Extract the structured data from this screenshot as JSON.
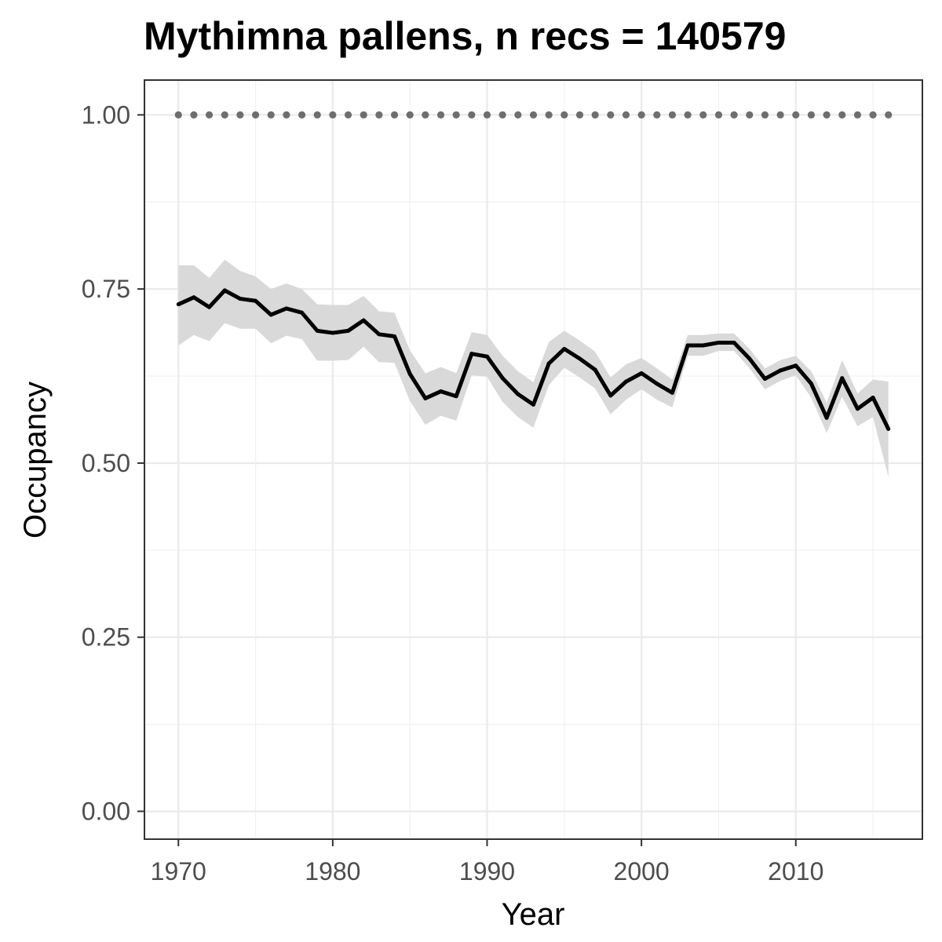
{
  "chart_data": {
    "type": "line",
    "title": "Mythimna pallens, n recs = 140579",
    "xlabel": "Year",
    "ylabel": "Occupancy",
    "xlim": [
      1967.8,
      2018.2
    ],
    "ylim": [
      -0.04,
      1.05
    ],
    "x_ticks": [
      1970,
      1980,
      1990,
      2000,
      2010
    ],
    "x_tick_labels": [
      "1970",
      "1980",
      "1990",
      "2000",
      "2010"
    ],
    "y_ticks": [
      0,
      0.25,
      0.5,
      0.75,
      1.0
    ],
    "y_tick_labels": [
      "0.00",
      "0.25",
      "0.50",
      "0.75",
      "1.00"
    ],
    "grid": true,
    "legend": "none",
    "x": [
      1970,
      1971,
      1972,
      1973,
      1974,
      1975,
      1976,
      1977,
      1978,
      1979,
      1980,
      1981,
      1982,
      1983,
      1984,
      1985,
      1986,
      1987,
      1988,
      1989,
      1990,
      1991,
      1992,
      1993,
      1994,
      1995,
      1996,
      1997,
      1998,
      1999,
      2000,
      2001,
      2002,
      2003,
      2004,
      2005,
      2006,
      2007,
      2008,
      2009,
      2010,
      2011,
      2012,
      2013,
      2014,
      2015,
      2016
    ],
    "series": [
      {
        "role": "mean",
        "color": "#000000",
        "values": [
          0.728,
          0.738,
          0.724,
          0.748,
          0.736,
          0.733,
          0.713,
          0.722,
          0.716,
          0.69,
          0.687,
          0.69,
          0.705,
          0.685,
          0.682,
          0.628,
          0.593,
          0.603,
          0.596,
          0.657,
          0.653,
          0.622,
          0.599,
          0.584,
          0.643,
          0.664,
          0.65,
          0.634,
          0.597,
          0.617,
          0.629,
          0.614,
          0.601,
          0.669,
          0.669,
          0.673,
          0.673,
          0.65,
          0.621,
          0.633,
          0.64,
          0.614,
          0.565,
          0.622,
          0.578,
          0.594,
          0.549
        ]
      },
      {
        "role": "lower_bound",
        "color": "#d9d9d9",
        "values": [
          0.669,
          0.684,
          0.675,
          0.701,
          0.693,
          0.693,
          0.672,
          0.683,
          0.678,
          0.647,
          0.647,
          0.648,
          0.667,
          0.645,
          0.644,
          0.589,
          0.555,
          0.568,
          0.561,
          0.626,
          0.624,
          0.588,
          0.566,
          0.551,
          0.612,
          0.637,
          0.623,
          0.607,
          0.57,
          0.591,
          0.606,
          0.591,
          0.58,
          0.654,
          0.654,
          0.661,
          0.661,
          0.636,
          0.606,
          0.618,
          0.626,
          0.594,
          0.543,
          0.595,
          0.553,
          0.566,
          0.48
        ]
      },
      {
        "role": "upper_bound",
        "color": "#d9d9d9",
        "values": [
          0.784,
          0.784,
          0.766,
          0.792,
          0.776,
          0.768,
          0.75,
          0.758,
          0.75,
          0.728,
          0.727,
          0.727,
          0.74,
          0.718,
          0.716,
          0.662,
          0.629,
          0.638,
          0.629,
          0.688,
          0.684,
          0.654,
          0.632,
          0.616,
          0.674,
          0.69,
          0.676,
          0.66,
          0.623,
          0.642,
          0.651,
          0.636,
          0.62,
          0.684,
          0.684,
          0.686,
          0.686,
          0.664,
          0.636,
          0.648,
          0.654,
          0.632,
          0.587,
          0.648,
          0.6,
          0.62,
          0.617
        ]
      },
      {
        "role": "reference",
        "color": "#6e6e6e",
        "values": [
          1,
          1,
          1,
          1,
          1,
          1,
          1,
          1,
          1,
          1,
          1,
          1,
          1,
          1,
          1,
          1,
          1,
          1,
          1,
          1,
          1,
          1,
          1,
          1,
          1,
          1,
          1,
          1,
          1,
          1,
          1,
          1,
          1,
          1,
          1,
          1,
          1,
          1,
          1,
          1,
          1,
          1,
          1,
          1,
          1,
          1,
          1
        ]
      }
    ]
  }
}
